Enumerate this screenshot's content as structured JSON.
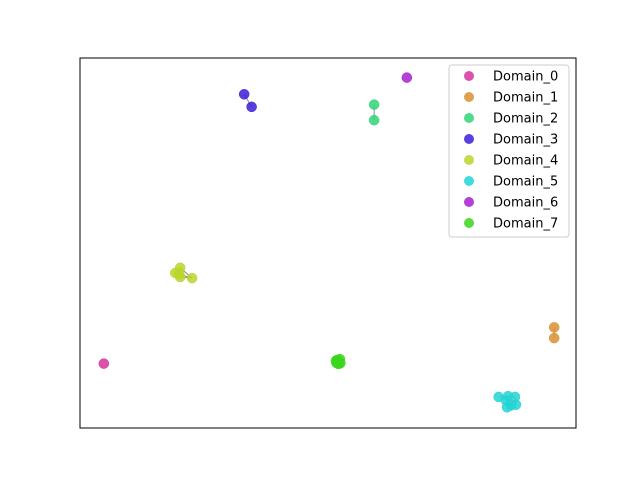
{
  "chart_data": {
    "type": "scatter",
    "title": "",
    "xlabel": "",
    "ylabel": "",
    "axes_visible_ticks": false,
    "grid": false,
    "legend_placement": "top-right",
    "xlim": [
      0,
      100
    ],
    "ylim": [
      0,
      100
    ],
    "series": [
      {
        "name": "Domain_0",
        "color": "#d6329a",
        "points": [
          [
            4.8,
            17.4
          ]
        ],
        "edges": []
      },
      {
        "name": "Domain_1",
        "color": "#d99130",
        "points": [
          [
            95.6,
            27.2
          ],
          [
            95.6,
            24.3
          ]
        ],
        "edges": [
          [
            0,
            1
          ]
        ]
      },
      {
        "name": "Domain_2",
        "color": "#30d478",
        "points": [
          [
            59.3,
            87.4
          ],
          [
            59.3,
            83.2
          ]
        ],
        "edges": [
          [
            0,
            1
          ]
        ]
      },
      {
        "name": "Domain_3",
        "color": "#3a1fd6",
        "points": [
          [
            33.1,
            90.2
          ],
          [
            34.6,
            86.8
          ]
        ],
        "edges": [
          [
            0,
            1
          ]
        ]
      },
      {
        "name": "Domain_4",
        "color": "#b9d62a",
        "points": [
          [
            20.2,
            43.3
          ],
          [
            19.2,
            41.9
          ],
          [
            20.2,
            40.8
          ],
          [
            22.6,
            40.5
          ],
          [
            20.0,
            41.6
          ]
        ],
        "edges": [
          [
            0,
            1
          ],
          [
            1,
            2
          ],
          [
            2,
            3
          ],
          [
            0,
            3
          ],
          [
            1,
            3
          ]
        ]
      },
      {
        "name": "Domain_5",
        "color": "#22d4d4",
        "points": [
          [
            84.4,
            8.4
          ],
          [
            86.3,
            8.6
          ],
          [
            87.7,
            8.4
          ],
          [
            86.9,
            6.1
          ],
          [
            86.1,
            5.6
          ],
          [
            87.9,
            6.3
          ],
          [
            85.9,
            7.4
          ]
        ],
        "edges": [
          [
            0,
            1
          ],
          [
            1,
            2
          ],
          [
            2,
            5
          ],
          [
            3,
            4
          ],
          [
            1,
            6
          ],
          [
            6,
            3
          ]
        ]
      },
      {
        "name": "Domain_6",
        "color": "#a61fd0",
        "points": [
          [
            65.9,
            94.7
          ]
        ],
        "edges": []
      },
      {
        "name": "Domain_7",
        "color": "#3ad61a",
        "points": [
          [
            52.0,
            18.1
          ],
          [
            52.4,
            18.6
          ],
          [
            51.7,
            17.6
          ],
          [
            52.3,
            17.9
          ],
          [
            51.9,
            18.4
          ],
          [
            52.1,
            17.3
          ],
          [
            51.6,
            18.2
          ],
          [
            52.5,
            17.5
          ]
        ],
        "edges": []
      }
    ]
  }
}
